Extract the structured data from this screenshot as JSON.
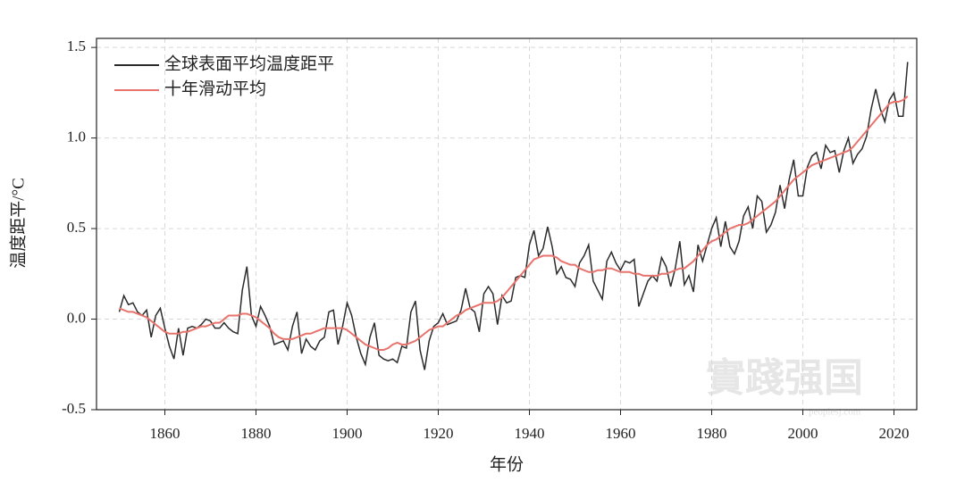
{
  "chart_data": {
    "type": "line",
    "xlabel": "年份",
    "ylabel": "温度距平/°C",
    "watermark": "實踐强国",
    "watermark_sub": "peoplesj.com",
    "xlim": [
      1845,
      2025
    ],
    "ylim": [
      -0.5,
      1.55
    ],
    "xticks": [
      1860,
      1880,
      1900,
      1920,
      1940,
      1960,
      1980,
      2000,
      2020
    ],
    "yticks": [
      -0.5,
      {
        "value": 0,
        "label": "0.0"
      },
      0.5,
      {
        "value": 1,
        "label": "1.0"
      },
      1.5
    ],
    "grid": true,
    "legend": "upper-left",
    "x": [
      1850,
      1851,
      1852,
      1853,
      1854,
      1855,
      1856,
      1857,
      1858,
      1859,
      1860,
      1861,
      1862,
      1863,
      1864,
      1865,
      1866,
      1867,
      1868,
      1869,
      1870,
      1871,
      1872,
      1873,
      1874,
      1875,
      1876,
      1877,
      1878,
      1879,
      1880,
      1881,
      1882,
      1883,
      1884,
      1885,
      1886,
      1887,
      1888,
      1889,
      1890,
      1891,
      1892,
      1893,
      1894,
      1895,
      1896,
      1897,
      1898,
      1899,
      1900,
      1901,
      1902,
      1903,
      1904,
      1905,
      1906,
      1907,
      1908,
      1909,
      1910,
      1911,
      1912,
      1913,
      1914,
      1915,
      1916,
      1917,
      1918,
      1919,
      1920,
      1921,
      1922,
      1923,
      1924,
      1925,
      1926,
      1927,
      1928,
      1929,
      1930,
      1931,
      1932,
      1933,
      1934,
      1935,
      1936,
      1937,
      1938,
      1939,
      1940,
      1941,
      1942,
      1943,
      1944,
      1945,
      1946,
      1947,
      1948,
      1949,
      1950,
      1951,
      1952,
      1953,
      1954,
      1955,
      1956,
      1957,
      1958,
      1959,
      1960,
      1961,
      1962,
      1963,
      1964,
      1965,
      1966,
      1967,
      1968,
      1969,
      1970,
      1971,
      1972,
      1973,
      1974,
      1975,
      1976,
      1977,
      1978,
      1979,
      1980,
      1981,
      1982,
      1983,
      1984,
      1985,
      1986,
      1987,
      1988,
      1989,
      1990,
      1991,
      1992,
      1993,
      1994,
      1995,
      1996,
      1997,
      1998,
      1999,
      2000,
      2001,
      2002,
      2003,
      2004,
      2005,
      2006,
      2007,
      2008,
      2009,
      2010,
      2011,
      2012,
      2013,
      2014,
      2015,
      2016,
      2017,
      2018,
      2019,
      2020,
      2021,
      2022,
      2023
    ],
    "series": [
      {
        "name": "全球表面平均温度距平",
        "color": "#2b2b2b",
        "values": [
          0.04,
          0.13,
          0.08,
          0.09,
          0.04,
          0.02,
          0.05,
          -0.1,
          0.02,
          0.06,
          -0.05,
          -0.15,
          -0.22,
          -0.05,
          -0.2,
          -0.05,
          -0.04,
          -0.05,
          -0.03,
          0.0,
          -0.01,
          -0.05,
          -0.05,
          -0.02,
          -0.05,
          -0.07,
          -0.08,
          0.16,
          0.29,
          0.02,
          -0.04,
          0.07,
          0.02,
          -0.04,
          -0.14,
          -0.13,
          -0.12,
          -0.17,
          -0.04,
          0.04,
          -0.19,
          -0.11,
          -0.15,
          -0.17,
          -0.12,
          -0.1,
          0.04,
          0.05,
          -0.14,
          -0.04,
          0.09,
          0.02,
          -0.1,
          -0.19,
          -0.25,
          -0.1,
          -0.02,
          -0.2,
          -0.22,
          -0.23,
          -0.22,
          -0.24,
          -0.15,
          -0.16,
          0.04,
          0.1,
          -0.17,
          -0.28,
          -0.12,
          -0.04,
          -0.02,
          0.03,
          -0.03,
          -0.02,
          -0.01,
          0.05,
          0.17,
          0.06,
          0.04,
          -0.07,
          0.14,
          0.18,
          0.14,
          -0.03,
          0.13,
          0.09,
          0.1,
          0.23,
          0.24,
          0.23,
          0.41,
          0.49,
          0.35,
          0.39,
          0.51,
          0.4,
          0.25,
          0.29,
          0.23,
          0.22,
          0.18,
          0.31,
          0.35,
          0.41,
          0.21,
          0.16,
          0.11,
          0.32,
          0.37,
          0.31,
          0.27,
          0.32,
          0.31,
          0.33,
          0.07,
          0.14,
          0.21,
          0.24,
          0.21,
          0.34,
          0.29,
          0.18,
          0.28,
          0.43,
          0.19,
          0.24,
          0.15,
          0.41,
          0.32,
          0.41,
          0.5,
          0.56,
          0.4,
          0.54,
          0.4,
          0.36,
          0.43,
          0.57,
          0.62,
          0.5,
          0.68,
          0.65,
          0.48,
          0.52,
          0.59,
          0.74,
          0.61,
          0.77,
          0.88,
          0.68,
          0.68,
          0.84,
          0.9,
          0.92,
          0.83,
          0.96,
          0.92,
          0.93,
          0.81,
          0.93,
          1.0,
          0.86,
          0.91,
          0.94,
          1.01,
          1.16,
          1.27,
          1.16,
          1.09,
          1.21,
          1.25,
          1.12,
          1.12,
          1.42
        ]
      },
      {
        "name": "十年滑动平均",
        "color": "#e8736c",
        "values": [
          0.06,
          0.05,
          0.04,
          0.04,
          0.03,
          0.02,
          0.01,
          -0.01,
          -0.03,
          -0.05,
          -0.07,
          -0.08,
          -0.08,
          -0.08,
          -0.07,
          -0.07,
          -0.06,
          -0.05,
          -0.04,
          -0.04,
          -0.03,
          -0.02,
          -0.02,
          0.0,
          0.02,
          0.02,
          0.02,
          0.03,
          0.03,
          0.02,
          0.01,
          -0.01,
          -0.03,
          -0.05,
          -0.08,
          -0.1,
          -0.11,
          -0.11,
          -0.11,
          -0.1,
          -0.09,
          -0.08,
          -0.08,
          -0.07,
          -0.06,
          -0.05,
          -0.05,
          -0.05,
          -0.05,
          -0.05,
          -0.06,
          -0.08,
          -0.1,
          -0.12,
          -0.14,
          -0.15,
          -0.16,
          -0.17,
          -0.17,
          -0.16,
          -0.14,
          -0.13,
          -0.14,
          -0.14,
          -0.13,
          -0.12,
          -0.1,
          -0.08,
          -0.06,
          -0.05,
          -0.04,
          -0.04,
          -0.02,
          0.0,
          0.02,
          0.03,
          0.05,
          0.06,
          0.07,
          0.08,
          0.09,
          0.09,
          0.09,
          0.1,
          0.12,
          0.15,
          0.18,
          0.21,
          0.24,
          0.27,
          0.3,
          0.33,
          0.34,
          0.35,
          0.35,
          0.35,
          0.34,
          0.32,
          0.31,
          0.3,
          0.3,
          0.28,
          0.27,
          0.26,
          0.26,
          0.27,
          0.27,
          0.28,
          0.28,
          0.27,
          0.26,
          0.26,
          0.26,
          0.25,
          0.25,
          0.24,
          0.24,
          0.24,
          0.24,
          0.25,
          0.25,
          0.26,
          0.27,
          0.28,
          0.28,
          0.3,
          0.32,
          0.35,
          0.38,
          0.41,
          0.43,
          0.44,
          0.46,
          0.48,
          0.5,
          0.51,
          0.52,
          0.52,
          0.53,
          0.55,
          0.57,
          0.59,
          0.61,
          0.63,
          0.65,
          0.68,
          0.71,
          0.74,
          0.77,
          0.79,
          0.81,
          0.83,
          0.85,
          0.86,
          0.87,
          0.88,
          0.89,
          0.9,
          0.91,
          0.92,
          0.93,
          0.95,
          0.98,
          1.01,
          1.04,
          1.07,
          1.1,
          1.13,
          1.16,
          1.19,
          1.2,
          1.2,
          1.21,
          1.23
        ]
      }
    ]
  }
}
